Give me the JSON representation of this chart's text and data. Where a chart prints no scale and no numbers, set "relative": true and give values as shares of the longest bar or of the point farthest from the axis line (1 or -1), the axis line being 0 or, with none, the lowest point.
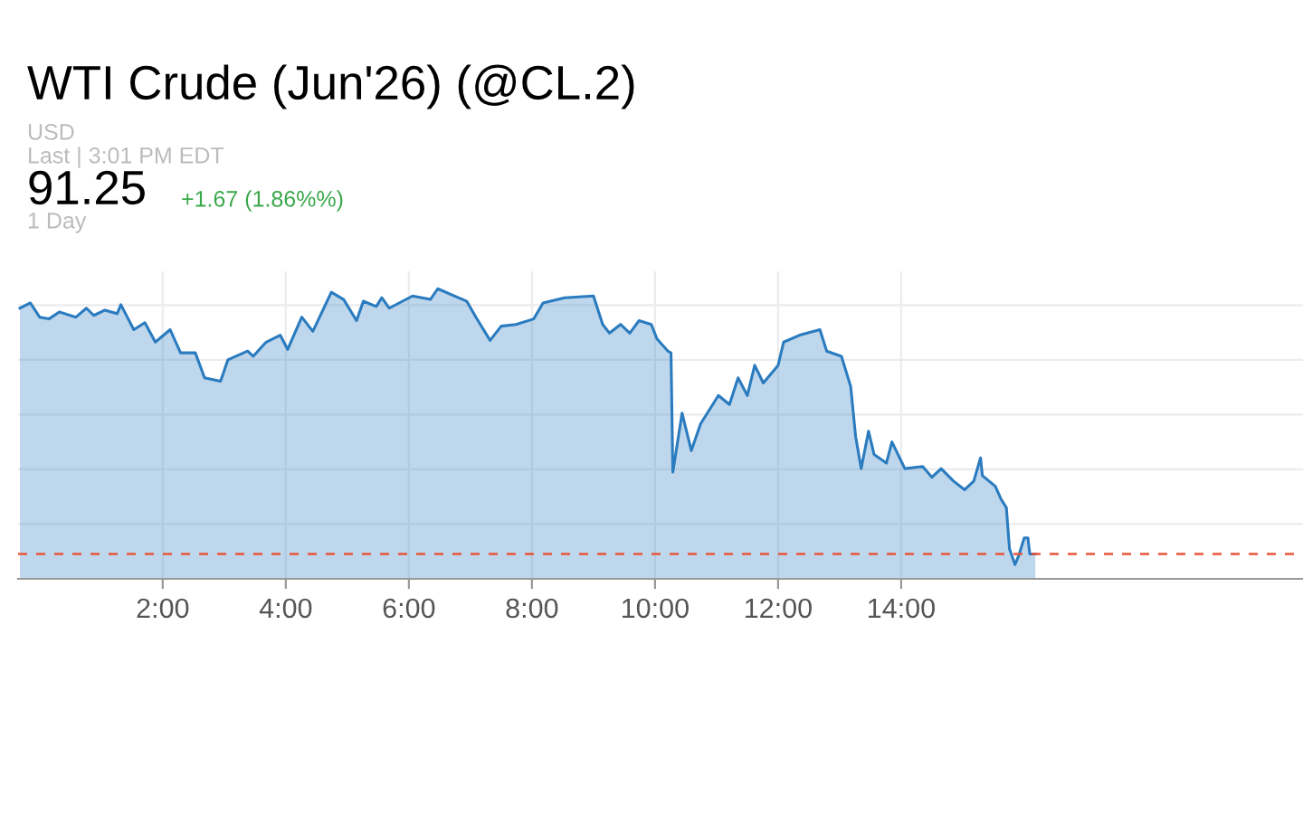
{
  "chart_data": {
    "type": "area",
    "title": "WTI Crude (Jun'26) (@CL.2)",
    "annotations": [
      "USD",
      "Last | 3:01 PM EDT",
      "91.25",
      "+1.67 (1.86%%)",
      "1 Day"
    ],
    "relative": true,
    "xlim": [
      -0.35,
      20.53
    ],
    "xticks": [
      {
        "value": 2,
        "label": "2:00"
      },
      {
        "value": 4,
        "label": "4:00"
      },
      {
        "value": 6,
        "label": "6:00"
      },
      {
        "value": 8,
        "label": "8:00"
      },
      {
        "value": 10,
        "label": "10:00"
      },
      {
        "value": 12,
        "label": "12:00"
      },
      {
        "value": 14,
        "label": "14:00"
      }
    ],
    "tick_labels": "x",
    "grid": true,
    "ref_lines": [
      {
        "axis": "y",
        "value": 0.086,
        "label": null,
        "color": "#e8553a",
        "line_style": "dashed"
      }
    ],
    "series": [
      {
        "color": "#2a7bbf",
        "x": [
          -0.32,
          -0.15,
          0.0,
          0.15,
          0.32,
          0.59,
          0.76,
          0.88,
          1.06,
          1.26,
          1.32,
          1.53,
          1.71,
          1.88,
          2.12,
          2.29,
          2.53,
          2.68,
          2.94,
          3.06,
          3.38,
          3.47,
          3.68,
          3.91,
          4.03,
          4.26,
          4.44,
          4.74,
          4.94,
          5.15,
          5.26,
          5.47,
          5.56,
          5.68,
          6.06,
          6.35,
          6.47,
          6.94,
          7.09,
          7.32,
          7.5,
          7.74,
          8.03,
          8.18,
          8.53,
          9.0,
          9.15,
          9.26,
          9.44,
          9.59,
          9.74,
          9.94,
          10.03,
          10.21,
          10.26,
          10.29,
          10.44,
          10.59,
          10.74,
          11.03,
          11.21,
          11.35,
          11.5,
          11.62,
          11.76,
          12.0,
          12.09,
          12.35,
          12.68,
          12.79,
          13.03,
          13.18,
          13.26,
          13.35,
          13.47,
          13.56,
          13.76,
          13.85,
          14.06,
          14.35,
          14.5,
          14.65,
          14.85,
          15.03,
          15.18,
          15.29,
          15.32,
          15.53,
          15.62,
          15.71,
          15.76,
          15.85,
          15.91,
          16.0,
          16.06,
          16.09,
          16.18
        ],
        "values": [
          0.933,
          0.951,
          0.902,
          0.896,
          0.92,
          0.902,
          0.933,
          0.908,
          0.926,
          0.914,
          0.945,
          0.859,
          0.883,
          0.816,
          0.859,
          0.779,
          0.779,
          0.693,
          0.681,
          0.755,
          0.785,
          0.767,
          0.816,
          0.84,
          0.791,
          0.902,
          0.853,
          0.988,
          0.963,
          0.89,
          0.957,
          0.939,
          0.969,
          0.933,
          0.975,
          0.963,
          1.0,
          0.957,
          0.902,
          0.822,
          0.871,
          0.877,
          0.896,
          0.951,
          0.969,
          0.975,
          0.877,
          0.847,
          0.877,
          0.847,
          0.89,
          0.877,
          0.828,
          0.785,
          0.779,
          0.368,
          0.571,
          0.442,
          0.534,
          0.632,
          0.601,
          0.693,
          0.632,
          0.736,
          0.675,
          0.736,
          0.816,
          0.84,
          0.859,
          0.785,
          0.767,
          0.663,
          0.491,
          0.38,
          0.509,
          0.429,
          0.399,
          0.472,
          0.38,
          0.387,
          0.35,
          0.38,
          0.337,
          0.307,
          0.337,
          0.417,
          0.356,
          0.319,
          0.276,
          0.245,
          0.104,
          0.049,
          0.08,
          0.141,
          0.141,
          0.086,
          0.086
        ]
      }
    ]
  }
}
